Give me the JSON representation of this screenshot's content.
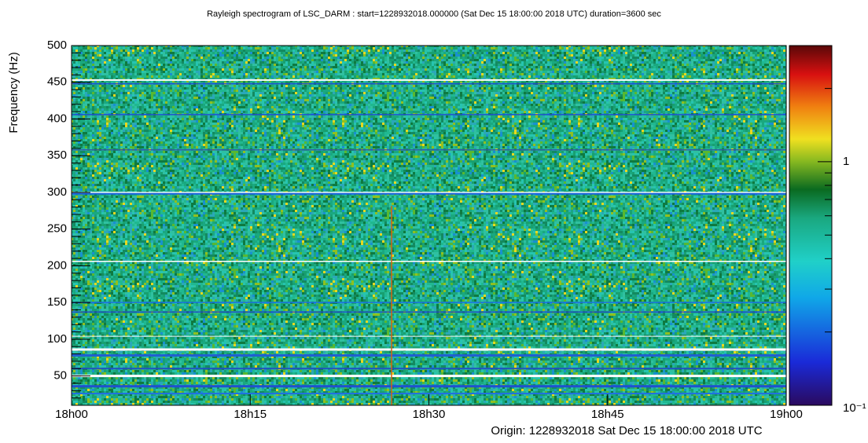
{
  "chart_data": {
    "type": "spectrogram",
    "title": "Rayleigh spectrogram of LSC_DARM : start=1228932018.000000 (Sat Dec 15 18:00:00 2018 UTC) duration=3600 sec",
    "y_label": "Frequency (Hz)",
    "xlim": [
      0,
      3600
    ],
    "xticks": [
      {
        "value": 0,
        "label": "18h00"
      },
      {
        "value": 900,
        "label": "18h15"
      },
      {
        "value": 1800,
        "label": "18h30"
      },
      {
        "value": 2700,
        "label": "18h45"
      },
      {
        "value": 3600,
        "label": "19h00"
      }
    ],
    "ylim": [
      10,
      500
    ],
    "yticks": [
      50,
      100,
      150,
      200,
      250,
      300,
      350,
      400,
      450,
      500
    ],
    "zlim": [
      0.1,
      3
    ],
    "zticks": [
      {
        "value": 0.1,
        "label": "10⁻¹"
      },
      1
    ],
    "z_log": true,
    "annotation": "Origin: 1228932018  Sat Dec 15 18:00:00 2018 UTC"
  }
}
